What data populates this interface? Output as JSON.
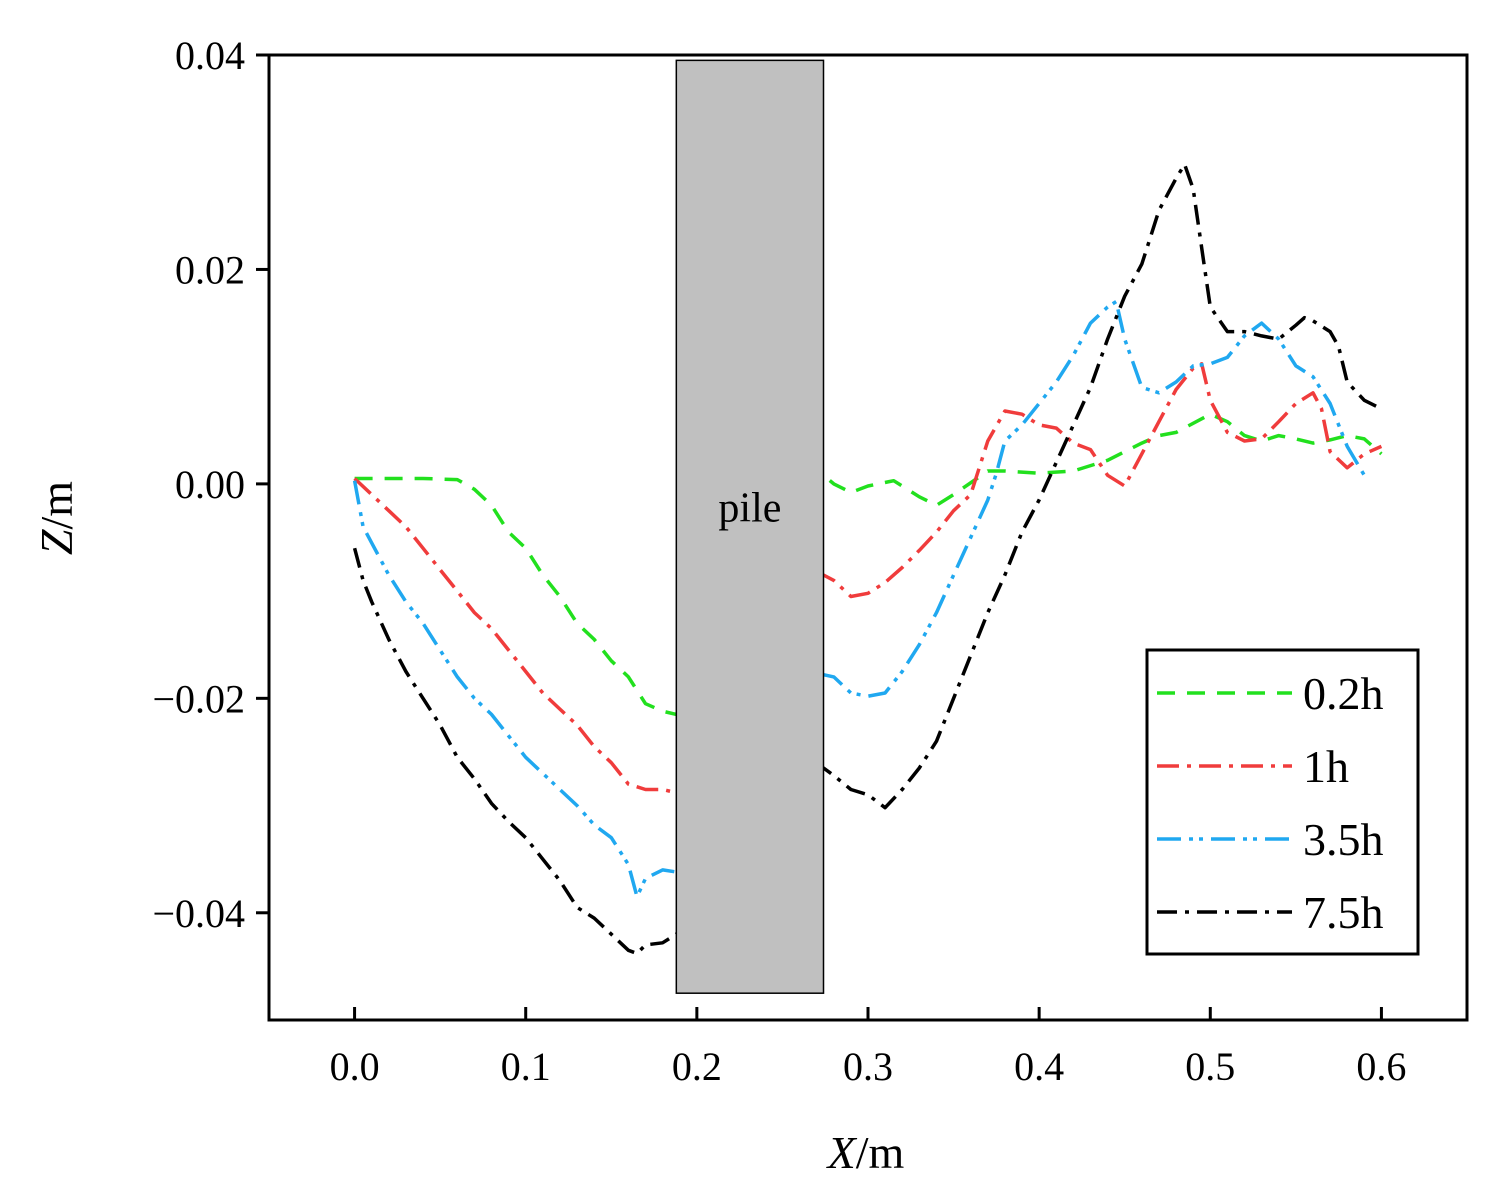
{
  "chart_data": {
    "type": "line",
    "title": "",
    "xlabel_var": "X",
    "xlabel_unit": "/m",
    "ylabel_var": "Z",
    "ylabel_unit": "/m",
    "xlim": [
      -0.05,
      0.65
    ],
    "ylim": [
      -0.05,
      0.04
    ],
    "x_ticks": [
      0.0,
      0.1,
      0.2,
      0.3,
      0.4,
      0.5,
      0.6
    ],
    "x_tick_labels": [
      "0.0",
      "0.1",
      "0.2",
      "0.3",
      "0.4",
      "0.5",
      "0.6"
    ],
    "y_ticks": [
      0.04,
      0.02,
      0.0,
      -0.02,
      -0.04
    ],
    "y_tick_labels": [
      "0.04",
      "0.02",
      "0.00",
      "−0.02",
      "−0.04"
    ],
    "legend_position": "bottom-right",
    "pile": {
      "label": "pile",
      "x_range": [
        0.188,
        0.274
      ],
      "y_range": [
        -0.0475,
        0.0395
      ],
      "color": "#c0c0c0"
    },
    "series": [
      {
        "name": "0.2h",
        "color": "#22e01e",
        "dash": "18,12",
        "points": [
          [
            0.0,
            0.0005
          ],
          [
            0.02,
            0.0005
          ],
          [
            0.04,
            0.0005
          ],
          [
            0.06,
            0.0004
          ],
          [
            0.07,
            -0.0005
          ],
          [
            0.08,
            -0.002
          ],
          [
            0.09,
            -0.0045
          ],
          [
            0.1,
            -0.006
          ],
          [
            0.11,
            -0.0085
          ],
          [
            0.12,
            -0.0105
          ],
          [
            0.13,
            -0.013
          ],
          [
            0.14,
            -0.0145
          ],
          [
            0.15,
            -0.0165
          ],
          [
            0.16,
            -0.018
          ],
          [
            0.17,
            -0.0205
          ],
          [
            0.18,
            -0.0212
          ],
          [
            0.188,
            -0.0215
          ],
          [
            0.274,
            0.0008
          ],
          [
            0.28,
            0.0
          ],
          [
            0.29,
            -0.0008
          ],
          [
            0.3,
            -0.0002
          ],
          [
            0.315,
            0.0003
          ],
          [
            0.33,
            -0.0012
          ],
          [
            0.34,
            -0.002
          ],
          [
            0.35,
            -0.001
          ],
          [
            0.37,
            0.0012
          ],
          [
            0.38,
            0.0012
          ],
          [
            0.4,
            0.001
          ],
          [
            0.42,
            0.0012
          ],
          [
            0.44,
            0.0022
          ],
          [
            0.46,
            0.0038
          ],
          [
            0.47,
            0.0045
          ],
          [
            0.48,
            0.0048
          ],
          [
            0.5,
            0.0065
          ],
          [
            0.51,
            0.0058
          ],
          [
            0.52,
            0.0045
          ],
          [
            0.53,
            0.004
          ],
          [
            0.54,
            0.0045
          ],
          [
            0.55,
            0.0042
          ],
          [
            0.56,
            0.0038
          ],
          [
            0.57,
            0.0041
          ],
          [
            0.58,
            0.0045
          ],
          [
            0.59,
            0.0042
          ],
          [
            0.6,
            0.0028
          ]
        ]
      },
      {
        "name": "1h",
        "color": "#f03c3c",
        "dash": "22,8,4,8",
        "points": [
          [
            0.0,
            0.0005
          ],
          [
            0.01,
            -0.001
          ],
          [
            0.02,
            -0.0025
          ],
          [
            0.03,
            -0.004
          ],
          [
            0.04,
            -0.006
          ],
          [
            0.05,
            -0.008
          ],
          [
            0.06,
            -0.01
          ],
          [
            0.07,
            -0.012
          ],
          [
            0.08,
            -0.0135
          ],
          [
            0.09,
            -0.0155
          ],
          [
            0.1,
            -0.0175
          ],
          [
            0.11,
            -0.0195
          ],
          [
            0.12,
            -0.021
          ],
          [
            0.13,
            -0.0225
          ],
          [
            0.14,
            -0.0245
          ],
          [
            0.15,
            -0.026
          ],
          [
            0.16,
            -0.028
          ],
          [
            0.17,
            -0.0285
          ],
          [
            0.18,
            -0.0285
          ],
          [
            0.188,
            -0.0288
          ],
          [
            0.274,
            -0.0085
          ],
          [
            0.28,
            -0.009
          ],
          [
            0.29,
            -0.0105
          ],
          [
            0.3,
            -0.0102
          ],
          [
            0.31,
            -0.0092
          ],
          [
            0.32,
            -0.0078
          ],
          [
            0.33,
            -0.0062
          ],
          [
            0.34,
            -0.0045
          ],
          [
            0.35,
            -0.0025
          ],
          [
            0.36,
            -0.001
          ],
          [
            0.37,
            0.004
          ],
          [
            0.38,
            0.0068
          ],
          [
            0.39,
            0.0065
          ],
          [
            0.4,
            0.0055
          ],
          [
            0.41,
            0.0052
          ],
          [
            0.42,
            0.0038
          ],
          [
            0.43,
            0.0032
          ],
          [
            0.44,
            0.0008
          ],
          [
            0.45,
            -0.0002
          ],
          [
            0.46,
            0.0028
          ],
          [
            0.47,
            0.0058
          ],
          [
            0.48,
            0.0088
          ],
          [
            0.49,
            0.0108
          ],
          [
            0.495,
            0.0112
          ],
          [
            0.5,
            0.0078
          ],
          [
            0.51,
            0.0048
          ],
          [
            0.52,
            0.004
          ],
          [
            0.53,
            0.0042
          ],
          [
            0.54,
            0.0058
          ],
          [
            0.55,
            0.0075
          ],
          [
            0.56,
            0.0085
          ],
          [
            0.565,
            0.007
          ],
          [
            0.57,
            0.003
          ],
          [
            0.58,
            0.0015
          ],
          [
            0.59,
            0.0028
          ],
          [
            0.6,
            0.0035
          ]
        ]
      },
      {
        "name": "3.5h",
        "color": "#20a8f0",
        "dash": "24,8,4,6,4,8",
        "points": [
          [
            0.0,
            0.0003
          ],
          [
            0.005,
            -0.004
          ],
          [
            0.01,
            -0.0055
          ],
          [
            0.02,
            -0.0085
          ],
          [
            0.03,
            -0.011
          ],
          [
            0.04,
            -0.013
          ],
          [
            0.05,
            -0.0155
          ],
          [
            0.06,
            -0.018
          ],
          [
            0.07,
            -0.02
          ],
          [
            0.08,
            -0.0215
          ],
          [
            0.09,
            -0.0235
          ],
          [
            0.1,
            -0.0255
          ],
          [
            0.11,
            -0.027
          ],
          [
            0.12,
            -0.0285
          ],
          [
            0.13,
            -0.03
          ],
          [
            0.14,
            -0.0318
          ],
          [
            0.15,
            -0.033
          ],
          [
            0.16,
            -0.0355
          ],
          [
            0.165,
            -0.0385
          ],
          [
            0.17,
            -0.0368
          ],
          [
            0.18,
            -0.036
          ],
          [
            0.188,
            -0.0362
          ],
          [
            0.274,
            -0.0178
          ],
          [
            0.28,
            -0.018
          ],
          [
            0.29,
            -0.0195
          ],
          [
            0.3,
            -0.0198
          ],
          [
            0.31,
            -0.0195
          ],
          [
            0.32,
            -0.0175
          ],
          [
            0.33,
            -0.015
          ],
          [
            0.34,
            -0.012
          ],
          [
            0.35,
            -0.0085
          ],
          [
            0.36,
            -0.005
          ],
          [
            0.37,
            -0.0015
          ],
          [
            0.375,
            0.001
          ],
          [
            0.38,
            0.004
          ],
          [
            0.39,
            0.0055
          ],
          [
            0.4,
            0.0075
          ],
          [
            0.41,
            0.0095
          ],
          [
            0.42,
            0.012
          ],
          [
            0.43,
            0.015
          ],
          [
            0.44,
            0.0165
          ],
          [
            0.445,
            0.017
          ],
          [
            0.45,
            0.0135
          ],
          [
            0.46,
            0.009
          ],
          [
            0.47,
            0.0085
          ],
          [
            0.48,
            0.0095
          ],
          [
            0.49,
            0.011
          ],
          [
            0.5,
            0.0112
          ],
          [
            0.51,
            0.0118
          ],
          [
            0.52,
            0.0138
          ],
          [
            0.53,
            0.015
          ],
          [
            0.54,
            0.0135
          ],
          [
            0.55,
            0.011
          ],
          [
            0.56,
            0.01
          ],
          [
            0.57,
            0.0075
          ],
          [
            0.58,
            0.0035
          ],
          [
            0.59,
            0.0008
          ]
        ]
      },
      {
        "name": "7.5h",
        "color": "#000000",
        "dash": "20,8,4,8",
        "points": [
          [
            0.0,
            -0.006
          ],
          [
            0.005,
            -0.009
          ],
          [
            0.01,
            -0.011
          ],
          [
            0.02,
            -0.0145
          ],
          [
            0.03,
            -0.0175
          ],
          [
            0.04,
            -0.02
          ],
          [
            0.05,
            -0.0225
          ],
          [
            0.06,
            -0.0255
          ],
          [
            0.07,
            -0.0275
          ],
          [
            0.08,
            -0.0298
          ],
          [
            0.09,
            -0.0315
          ],
          [
            0.1,
            -0.033
          ],
          [
            0.11,
            -0.035
          ],
          [
            0.12,
            -0.037
          ],
          [
            0.13,
            -0.0395
          ],
          [
            0.14,
            -0.0405
          ],
          [
            0.15,
            -0.042
          ],
          [
            0.16,
            -0.0435
          ],
          [
            0.165,
            -0.0438
          ],
          [
            0.17,
            -0.043
          ],
          [
            0.18,
            -0.0428
          ],
          [
            0.188,
            -0.042
          ],
          [
            0.274,
            -0.0265
          ],
          [
            0.28,
            -0.0272
          ],
          [
            0.29,
            -0.0285
          ],
          [
            0.3,
            -0.029
          ],
          [
            0.31,
            -0.0302
          ],
          [
            0.32,
            -0.0285
          ],
          [
            0.33,
            -0.0265
          ],
          [
            0.34,
            -0.024
          ],
          [
            0.35,
            -0.02
          ],
          [
            0.36,
            -0.016
          ],
          [
            0.37,
            -0.012
          ],
          [
            0.38,
            -0.0085
          ],
          [
            0.39,
            -0.0045
          ],
          [
            0.4,
            -0.0015
          ],
          [
            0.41,
            0.002
          ],
          [
            0.42,
            0.0055
          ],
          [
            0.43,
            0.009
          ],
          [
            0.44,
            0.0135
          ],
          [
            0.45,
            0.0175
          ],
          [
            0.46,
            0.0205
          ],
          [
            0.465,
            0.023
          ],
          [
            0.47,
            0.0255
          ],
          [
            0.48,
            0.0285
          ],
          [
            0.485,
            0.0298
          ],
          [
            0.49,
            0.0275
          ],
          [
            0.495,
            0.022
          ],
          [
            0.5,
            0.0165
          ],
          [
            0.51,
            0.0142
          ],
          [
            0.52,
            0.0142
          ],
          [
            0.53,
            0.0138
          ],
          [
            0.54,
            0.0135
          ],
          [
            0.55,
            0.0148
          ],
          [
            0.555,
            0.0155
          ],
          [
            0.56,
            0.0152
          ],
          [
            0.57,
            0.0142
          ],
          [
            0.575,
            0.0128
          ],
          [
            0.58,
            0.0095
          ],
          [
            0.59,
            0.0078
          ],
          [
            0.6,
            0.007
          ]
        ]
      }
    ]
  }
}
